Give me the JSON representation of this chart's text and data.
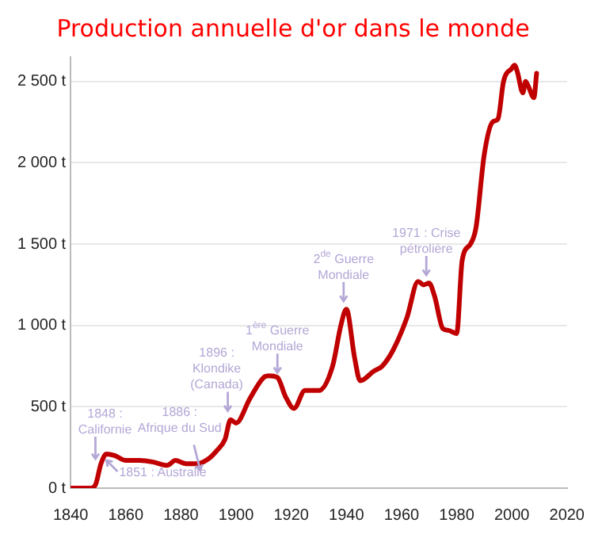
{
  "chart_data": {
    "type": "line",
    "title": "Production annuelle d'or dans le monde",
    "x": [
      1840,
      1847,
      1849,
      1851,
      1853,
      1856,
      1860,
      1865,
      1870,
      1875,
      1878,
      1882,
      1886,
      1890,
      1893,
      1896,
      1898,
      1900,
      1905,
      1910,
      1912,
      1915,
      1918,
      1921,
      1925,
      1930,
      1935,
      1938,
      1940,
      1943,
      1945,
      1950,
      1953,
      1957,
      1962,
      1966,
      1968,
      1970,
      1972,
      1975,
      1977,
      1980,
      1982,
      1985,
      1987,
      1990,
      1993,
      1995,
      1997,
      2000,
      2001,
      2002,
      2004,
      2005,
      2006,
      2008,
      2009
    ],
    "series": [
      {
        "color": "#c00000",
        "values": [
          0,
          0,
          20,
          150,
          210,
          200,
          170,
          170,
          160,
          140,
          170,
          150,
          150,
          180,
          230,
          300,
          420,
          400,
          550,
          680,
          690,
          680,
          560,
          490,
          600,
          600,
          750,
          1000,
          1100,
          800,
          660,
          720,
          750,
          850,
          1050,
          1270,
          1250,
          1260,
          1180,
          980,
          970,
          950,
          1400,
          1500,
          1600,
          2050,
          2250,
          2270,
          2500,
          2580,
          2600,
          2560,
          2430,
          2500,
          2470,
          2400,
          2550
        ]
      }
    ],
    "xlim": [
      1840,
      2020
    ],
    "xticks": [
      1840,
      1860,
      1880,
      1900,
      1920,
      1940,
      1960,
      1980,
      2000,
      2020
    ],
    "ylim": [
      0,
      2650
    ],
    "yticks": [
      {
        "value": 0,
        "label": "0 t"
      },
      {
        "value": 500,
        "label": "500 t"
      },
      {
        "value": 1000,
        "label": "1 000 t"
      },
      {
        "value": 1500,
        "label": "1 500 t"
      },
      {
        "value": 2000,
        "label": "2 000 t"
      },
      {
        "value": 2500,
        "label": "2 500 t"
      }
    ],
    "grid": "y",
    "legend": false,
    "marker": "none",
    "line_style": "solid",
    "annotations": [
      {
        "text": "1848 :\nCalifornie",
        "x": 1849,
        "y": 180
      },
      {
        "text": "1851 : Australie",
        "x": 1853,
        "y": 170
      },
      {
        "text": "1886 :\nAfrique du Sud",
        "x": 1887,
        "y": 110
      },
      {
        "text": "1896 :\nKlondike\n(Canada)",
        "x": 1897,
        "y": 475
      },
      {
        "text": "1$^{ère}$ Guerre\nMondiale",
        "x": 1915,
        "y": 710
      },
      {
        "text": "2$^{de}$ Guerre\nMondiale",
        "x": 1939,
        "y": 1150
      },
      {
        "text": "1971 : Crise\npétrolière",
        "x": 1969,
        "y": 1310
      }
    ]
  }
}
